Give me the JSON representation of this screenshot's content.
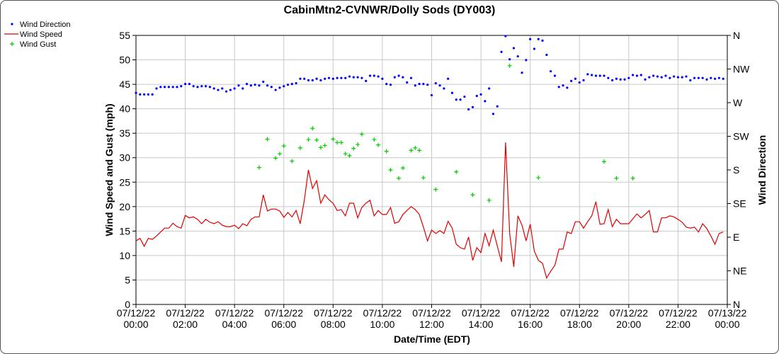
{
  "chart_data": {
    "type": "line",
    "title": "CabinMtn2-CVNWR/Dolly Sods (DY003)",
    "xlabel": "Date/Time (EDT)",
    "ylabel": "Wind Speed and Gust (mph)",
    "y2label": "Wind Direction",
    "xlim": [
      0,
      1440
    ],
    "xticks": [
      {
        "value": 0,
        "label": "07/12/22 00:00"
      },
      {
        "value": 120,
        "label": "07/12/22 02:00"
      },
      {
        "value": 240,
        "label": "07/12/22 04:00"
      },
      {
        "value": 360,
        "label": "07/12/22 06:00"
      },
      {
        "value": 480,
        "label": "07/12/22 08:00"
      },
      {
        "value": 600,
        "label": "07/12/22 10:00"
      },
      {
        "value": 720,
        "label": "07/12/22 12:00"
      },
      {
        "value": 840,
        "label": "07/12/22 14:00"
      },
      {
        "value": 960,
        "label": "07/12/22 16:00"
      },
      {
        "value": 1080,
        "label": "07/12/22 18:00"
      },
      {
        "value": 1200,
        "label": "07/12/22 20:00"
      },
      {
        "value": 1320,
        "label": "07/12/22 22:00"
      },
      {
        "value": 1440,
        "label": "07/13/22 00:00"
      }
    ],
    "ylim": [
      0,
      55
    ],
    "yticks": [
      0,
      5,
      10,
      15,
      20,
      25,
      30,
      35,
      40,
      45,
      50,
      55
    ],
    "y2lim": [
      0,
      360
    ],
    "y2ticks": [
      {
        "value": 0,
        "label": "N"
      },
      {
        "value": 45,
        "label": "NE"
      },
      {
        "value": 90,
        "label": "E"
      },
      {
        "value": 135,
        "label": "SE"
      },
      {
        "value": 180,
        "label": "S"
      },
      {
        "value": 225,
        "label": "SW"
      },
      {
        "value": 270,
        "label": "W"
      },
      {
        "value": 315,
        "label": "NW"
      },
      {
        "value": 360,
        "label": "N"
      }
    ],
    "grid": true,
    "legend": "outside-top-left",
    "x": [
      0,
      10,
      20,
      30,
      40,
      50,
      60,
      70,
      80,
      90,
      100,
      110,
      120,
      130,
      140,
      150,
      160,
      170,
      180,
      190,
      200,
      210,
      220,
      230,
      240,
      250,
      260,
      270,
      280,
      290,
      300,
      310,
      320,
      330,
      340,
      350,
      360,
      370,
      380,
      390,
      400,
      410,
      420,
      430,
      440,
      450,
      460,
      470,
      480,
      490,
      500,
      510,
      520,
      530,
      540,
      550,
      560,
      570,
      580,
      590,
      600,
      610,
      620,
      630,
      640,
      650,
      660,
      670,
      680,
      690,
      700,
      710,
      720,
      730,
      740,
      750,
      760,
      770,
      780,
      790,
      800,
      810,
      820,
      830,
      840,
      850,
      860,
      870,
      880,
      890,
      900,
      910,
      920,
      930,
      940,
      950,
      960,
      970,
      980,
      990,
      1000,
      1010,
      1020,
      1030,
      1040,
      1050,
      1060,
      1070,
      1080,
      1090,
      1100,
      1110,
      1120,
      1130,
      1140,
      1150,
      1160,
      1170,
      1180,
      1190,
      1200,
      1210,
      1220,
      1230,
      1240,
      1250,
      1260,
      1270,
      1280,
      1290,
      1300,
      1310,
      1320,
      1330,
      1340,
      1350,
      1360,
      1370,
      1380,
      1390,
      1400,
      1410,
      1420,
      1430
    ],
    "series": [
      {
        "name": "Wind Direction",
        "color": "#0000ff",
        "marker": "dot",
        "axis": "y2",
        "values": [
          283,
          281,
          281,
          281,
          281,
          289,
          291,
          291,
          291,
          291,
          291,
          292,
          295,
          295,
          292,
          291,
          292,
          292,
          291,
          289,
          287,
          289,
          285,
          287,
          289,
          293,
          289,
          295,
          293,
          294,
          293,
          298,
          293,
          291,
          287,
          290,
          292,
          294,
          295,
          296,
          302,
          302,
          300,
          300,
          302,
          300,
          302,
          303,
          302,
          303,
          303,
          303,
          305,
          304,
          304,
          303,
          299,
          306,
          306,
          305,
          302,
          295,
          294,
          304,
          306,
          304,
          297,
          303,
          293,
          295,
          295,
          294,
          280,
          296,
          293,
          289,
          302,
          283,
          274,
          274,
          278,
          261,
          264,
          279,
          281,
          272,
          289,
          255,
          265,
          338,
          359,
          328,
          343,
          332,
          310,
          327,
          355,
          342,
          355,
          353,
          334,
          312,
          306,
          291,
          293,
          290,
          299,
          302,
          297,
          300,
          308,
          307,
          306,
          306,
          306,
          303,
          300,
          302,
          301,
          301,
          303,
          307,
          306,
          307,
          301,
          304,
          306,
          305,
          304,
          306,
          303,
          305,
          304,
          304,
          305,
          300,
          303,
          303,
          303,
          301,
          303,
          302,
          303,
          302
        ]
      },
      {
        "name": "Wind Speed",
        "color": "#e00000",
        "marker": "line",
        "values": [
          13.0,
          13.5,
          11.9,
          13.5,
          13.3,
          14.0,
          14.8,
          15.6,
          15.6,
          16.6,
          15.9,
          15.6,
          18.2,
          17.7,
          17.9,
          17.4,
          16.5,
          17.4,
          16.8,
          16.5,
          16.9,
          16.2,
          15.9,
          15.9,
          16.2,
          15.5,
          16.5,
          16.1,
          17.4,
          17.9,
          17.9,
          22.4,
          19.1,
          19.5,
          19.5,
          19.1,
          17.8,
          18.8,
          17.9,
          19.2,
          16.5,
          21.3,
          27.5,
          23.7,
          25.3,
          20.7,
          22.4,
          21.4,
          20.7,
          19.2,
          19.4,
          18.1,
          20.7,
          20.7,
          17.7,
          19.8,
          20.7,
          21.3,
          18.1,
          19.2,
          18.4,
          18.4,
          19.8,
          16.6,
          16.9,
          18.4,
          19.2,
          20.0,
          19.4,
          18.4,
          15.8,
          13.0,
          15.2,
          14.5,
          15.1,
          14.5,
          17.0,
          15.6,
          12.3,
          11.6,
          11.3,
          13.8,
          9.0,
          11.6,
          10.6,
          14.5,
          12.0,
          15.2,
          11.9,
          8.7,
          33.1,
          14.5,
          7.7,
          18.1,
          16.2,
          13.0,
          16.4,
          10.9,
          9.0,
          8.4,
          5.4,
          6.8,
          8.0,
          11.3,
          11.3,
          14.8,
          14.5,
          16.9,
          16.9,
          15.6,
          16.9,
          18.1,
          21.0,
          16.4,
          16.5,
          19.4,
          15.9,
          17.4,
          16.5,
          16.5,
          16.5,
          17.5,
          18.5,
          17.7,
          18.4,
          19.2,
          14.8,
          14.8,
          17.7,
          17.7,
          18.1,
          17.9,
          17.4,
          16.8,
          15.8,
          15.6,
          15.8,
          14.8,
          16.5,
          15.5,
          14.0,
          12.3,
          14.5,
          14.8
        ]
      },
      {
        "name": "Wind Gust",
        "color": "#00cc00",
        "marker": "plus",
        "x": [
          300,
          320,
          340,
          350,
          360,
          380,
          400,
          420,
          430,
          440,
          450,
          460,
          480,
          490,
          500,
          510,
          520,
          530,
          540,
          550,
          580,
          590,
          610,
          620,
          640,
          650,
          670,
          680,
          690,
          700,
          730,
          780,
          820,
          860,
          910,
          980,
          1140,
          1170,
          1210
        ],
        "values": [
          28.0,
          33.8,
          29.9,
          30.8,
          32.4,
          29.3,
          32.0,
          33.7,
          36.0,
          33.6,
          32.1,
          32.5,
          33.8,
          33.1,
          33.1,
          30.8,
          30.4,
          31.9,
          32.7,
          34.8,
          33.7,
          32.6,
          31.3,
          27.5,
          25.8,
          27.9,
          31.5,
          32.0,
          31.5,
          25.9,
          23.5,
          27.1,
          22.4,
          21.3,
          48.8,
          25.9,
          29.2,
          25.8,
          25.8
        ]
      }
    ]
  }
}
